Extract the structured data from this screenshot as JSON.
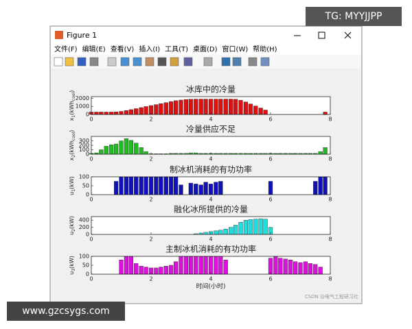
{
  "window": {
    "title": "Figure 1",
    "menu": [
      "文件(F)",
      "编辑(E)",
      "查看(V)",
      "插入(I)",
      "工具(T)",
      "桌面(D)",
      "窗口(W)",
      "帮助(H)"
    ]
  },
  "watermarks": {
    "top": "TG: MYYJJPP",
    "bottom": "www.gzcsygs.com",
    "csdn": "CSDN @电气工程研习社"
  },
  "chart_data": [
    {
      "type": "bar",
      "title": "冰库中的冷量",
      "ylabel": [
        "x",
        "1",
        "(kWh",
        "cool",
        ")"
      ],
      "color": "#dd1111",
      "x": [
        0,
        0.17,
        0.33,
        0.5,
        0.67,
        0.83,
        1,
        1.17,
        1.33,
        1.5,
        1.67,
        1.83,
        2,
        2.17,
        2.33,
        2.5,
        2.67,
        2.83,
        3,
        3.17,
        3.33,
        3.5,
        3.67,
        3.83,
        4,
        4.17,
        4.33,
        4.5,
        4.67,
        4.83,
        5,
        5.17,
        5.33,
        5.5,
        5.67,
        5.83,
        6,
        6.17,
        6.33,
        6.5,
        6.67,
        6.83,
        7,
        7.17,
        7.33,
        7.5,
        7.67,
        7.83
      ],
      "values": [
        300,
        300,
        300,
        300,
        300,
        320,
        380,
        480,
        600,
        720,
        850,
        980,
        1100,
        1220,
        1340,
        1460,
        1580,
        1700,
        1780,
        1850,
        1880,
        1900,
        1900,
        1900,
        1900,
        1900,
        1900,
        1900,
        1900,
        1880,
        1750,
        1550,
        1300,
        1050,
        800,
        550,
        0,
        0,
        0,
        0,
        0,
        0,
        0,
        0,
        0,
        0,
        0,
        300
      ],
      "xlim": [
        0,
        8
      ],
      "xticks": [
        0,
        2,
        4,
        6,
        8
      ],
      "ylim": [
        0,
        2200
      ],
      "yticks": [
        0,
        1000,
        2000
      ]
    },
    {
      "type": "bar",
      "title": "冷量供应不足",
      "ylabel": [
        "x",
        "2",
        "(kWh",
        "cool",
        ")"
      ],
      "color": "#22bb22",
      "x": [
        0,
        0.17,
        0.33,
        0.5,
        0.67,
        0.83,
        1,
        1.17,
        1.33,
        1.5,
        1.67,
        1.83,
        2,
        2.17,
        2.33,
        2.5,
        2.67,
        2.83,
        3,
        3.17,
        3.33,
        3.5,
        3.67,
        3.83,
        4,
        4.17,
        4.33,
        4.5,
        4.67,
        4.83,
        5,
        5.17,
        5.33,
        5.5,
        5.67,
        5.83,
        6,
        6.17,
        6.33,
        6.5,
        6.67,
        6.83,
        7,
        7.17,
        7.33,
        7.5,
        7.67,
        7.83
      ],
      "values": [
        20,
        30,
        100,
        180,
        210,
        230,
        300,
        350,
        310,
        250,
        150,
        60,
        10,
        10,
        10,
        10,
        20,
        20,
        20,
        20,
        30,
        30,
        20,
        20,
        20,
        20,
        20,
        20,
        20,
        20,
        20,
        20,
        20,
        20,
        20,
        20,
        20,
        20,
        20,
        20,
        20,
        20,
        20,
        20,
        20,
        20,
        60,
        150
      ],
      "xlim": [
        0,
        8
      ],
      "xticks": [
        0,
        2,
        4,
        6,
        8
      ],
      "ylim": [
        0,
        400
      ],
      "yticks": [
        0,
        100,
        200,
        300
      ]
    },
    {
      "type": "bar",
      "title": "制冰机消耗的有功功率",
      "ylabel": [
        "u",
        "1",
        "(kW)"
      ],
      "color": "#1111bb",
      "x": [
        0,
        0.17,
        0.33,
        0.5,
        0.67,
        0.83,
        1,
        1.17,
        1.33,
        1.5,
        1.67,
        1.83,
        2,
        2.17,
        2.33,
        2.5,
        2.67,
        2.83,
        3,
        3.17,
        3.33,
        3.5,
        3.67,
        3.83,
        4,
        4.17,
        4.33,
        4.5,
        4.67,
        4.83,
        5,
        5.17,
        5.33,
        5.5,
        5.67,
        5.83,
        6,
        6.17,
        6.33,
        6.5,
        6.67,
        6.83,
        7,
        7.17,
        7.33,
        7.5,
        7.67,
        7.83
      ],
      "values": [
        0,
        0,
        0,
        0,
        0,
        75,
        100,
        100,
        100,
        100,
        100,
        100,
        100,
        100,
        100,
        100,
        100,
        100,
        55,
        0,
        65,
        60,
        55,
        70,
        60,
        70,
        75,
        0,
        0,
        0,
        0,
        0,
        0,
        0,
        0,
        0,
        75,
        0,
        0,
        0,
        0,
        0,
        0,
        0,
        0,
        75,
        100,
        100
      ],
      "xlim": [
        0,
        8
      ],
      "xticks": [
        0,
        2,
        4,
        6,
        8
      ],
      "ylim": [
        0,
        100
      ],
      "yticks": [
        0,
        50,
        100
      ]
    },
    {
      "type": "bar",
      "title": "融化冰所提供的冷量",
      "ylabel": [
        "u",
        "2",
        "(kW)"
      ],
      "color": "#22dddd",
      "x": [
        0,
        0.17,
        0.33,
        0.5,
        0.67,
        0.83,
        1,
        1.17,
        1.33,
        1.5,
        1.67,
        1.83,
        2,
        2.17,
        2.33,
        2.5,
        2.67,
        2.83,
        3,
        3.17,
        3.33,
        3.5,
        3.67,
        3.83,
        4,
        4.17,
        4.33,
        4.5,
        4.67,
        4.83,
        5,
        5.17,
        5.33,
        5.5,
        5.67,
        5.83,
        6,
        6.17,
        6.33,
        6.5,
        6.67,
        6.83,
        7,
        7.17,
        7.33,
        7.5,
        7.67,
        7.83
      ],
      "values": [
        0,
        0,
        0,
        0,
        0,
        0,
        0,
        0,
        0,
        0,
        0,
        0,
        0,
        0,
        0,
        0,
        0,
        0,
        0,
        0,
        0,
        20,
        40,
        60,
        80,
        100,
        120,
        150,
        200,
        260,
        340,
        400,
        420,
        430,
        440,
        430,
        200,
        0,
        0,
        0,
        0,
        0,
        0,
        0,
        0,
        0,
        0,
        0
      ],
      "xlim": [
        0,
        8
      ],
      "xticks": [
        0,
        2,
        4,
        6,
        8
      ],
      "ylim": [
        0,
        500
      ],
      "yticks": [
        0,
        200,
        400
      ]
    },
    {
      "type": "bar",
      "title": "主制冰机消耗的有功功率",
      "ylabel": [
        "u",
        "3",
        "(kW)"
      ],
      "color": "#dd11dd",
      "xlabel": "时间(小时)",
      "x": [
        0,
        0.17,
        0.33,
        0.5,
        0.67,
        0.83,
        1,
        1.17,
        1.33,
        1.5,
        1.67,
        1.83,
        2,
        2.17,
        2.33,
        2.5,
        2.67,
        2.83,
        3,
        3.17,
        3.33,
        3.5,
        3.67,
        3.83,
        4,
        4.17,
        4.33,
        4.5,
        4.67,
        4.83,
        5,
        5.17,
        5.33,
        5.5,
        5.67,
        5.83,
        6,
        6.17,
        6.33,
        6.5,
        6.67,
        6.83,
        7,
        7.17,
        7.33,
        7.5,
        7.67,
        7.83
      ],
      "values": [
        0,
        0,
        0,
        0,
        0,
        0,
        80,
        100,
        100,
        60,
        45,
        40,
        35,
        35,
        40,
        45,
        50,
        70,
        100,
        100,
        100,
        100,
        100,
        100,
        100,
        100,
        100,
        80,
        0,
        0,
        0,
        0,
        0,
        0,
        0,
        0,
        90,
        100,
        90,
        85,
        80,
        70,
        65,
        70,
        60,
        55,
        40,
        0
      ],
      "xlim": [
        0,
        8
      ],
      "xticks": [
        0,
        2,
        4,
        6,
        8
      ],
      "ylim": [
        0,
        100
      ],
      "yticks": [
        0,
        50,
        100
      ]
    }
  ]
}
